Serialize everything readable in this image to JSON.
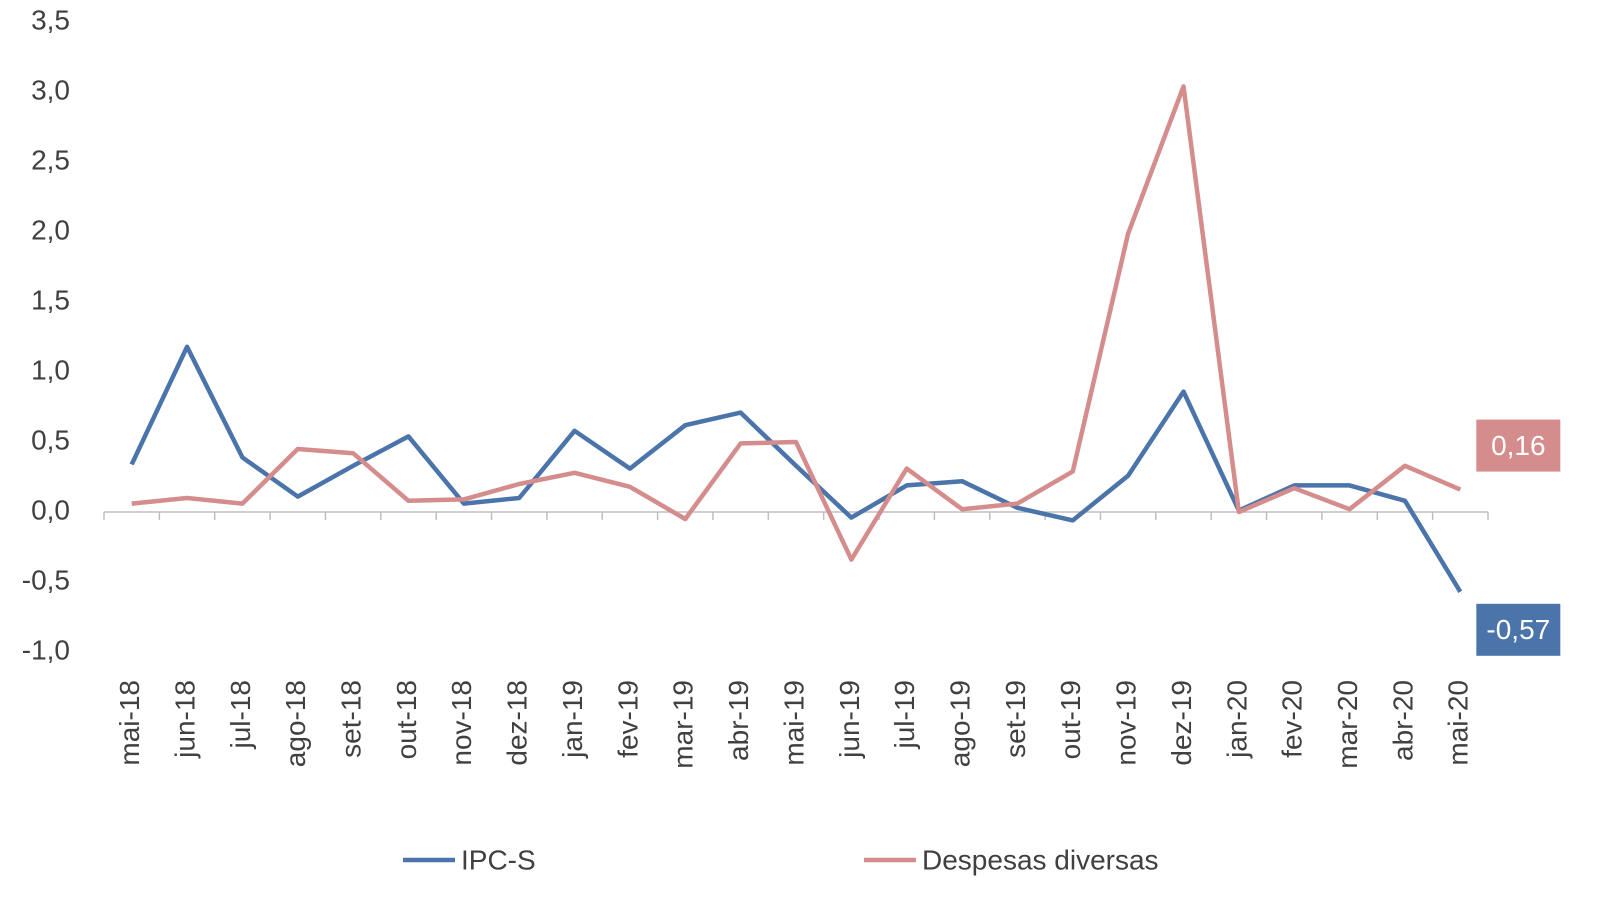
{
  "chart_data": {
    "type": "line",
    "categories": [
      "mai-18",
      "jun-18",
      "jul-18",
      "ago-18",
      "set-18",
      "out-18",
      "nov-18",
      "dez-18",
      "jan-19",
      "fev-19",
      "mar-19",
      "abr-19",
      "mai-19",
      "jun-19",
      "jul-19",
      "ago-19",
      "set-19",
      "out-19",
      "nov-19",
      "dez-19",
      "jan-20",
      "fev-20",
      "mar-20",
      "abr-20",
      "mai-20"
    ],
    "series": [
      {
        "name": "IPC-S",
        "color": "#4a74aa",
        "values": [
          0.34,
          1.18,
          0.39,
          0.11,
          0.33,
          0.54,
          0.06,
          0.1,
          0.58,
          0.31,
          0.62,
          0.71,
          0.33,
          -0.04,
          0.19,
          0.22,
          0.03,
          -0.06,
          0.26,
          0.86,
          0.01,
          0.19,
          0.19,
          0.08,
          -0.57
        ],
        "value_labels": [
          null,
          null,
          null,
          null,
          null,
          null,
          null,
          null,
          null,
          null,
          null,
          null,
          null,
          null,
          null,
          null,
          null,
          null,
          null,
          null,
          null,
          null,
          null,
          null,
          "-0,57"
        ]
      },
      {
        "name": "Despesas diversas",
        "color": "#d48c8c",
        "values": [
          0.06,
          0.1,
          0.06,
          0.45,
          0.42,
          0.08,
          0.09,
          0.2,
          0.28,
          0.18,
          -0.05,
          0.49,
          0.5,
          -0.34,
          0.31,
          0.02,
          0.06,
          0.29,
          1.99,
          3.04,
          0.0,
          0.17,
          0.02,
          0.33,
          0.16
        ],
        "value_labels": [
          null,
          null,
          null,
          null,
          null,
          null,
          null,
          null,
          null,
          null,
          null,
          null,
          null,
          null,
          null,
          null,
          null,
          null,
          null,
          null,
          null,
          null,
          null,
          null,
          "0,16"
        ]
      }
    ],
    "ylim": [
      -1.0,
      3.5
    ],
    "yticks": [
      {
        "value": -1.0,
        "label": "-1,0"
      },
      {
        "value": -0.5,
        "label": "-0,5"
      },
      {
        "value": 0,
        "label": "0,0"
      },
      {
        "value": 0.5,
        "label": "0,5"
      },
      {
        "value": 1.0,
        "label": "1,0"
      },
      {
        "value": 1.5,
        "label": "1,5"
      },
      {
        "value": 2.0,
        "label": "2,0"
      },
      {
        "value": 2.5,
        "label": "2,5"
      },
      {
        "value": 3.0,
        "label": "3,0"
      },
      {
        "value": 3.5,
        "label": "3,5"
      }
    ],
    "grid": false
  }
}
